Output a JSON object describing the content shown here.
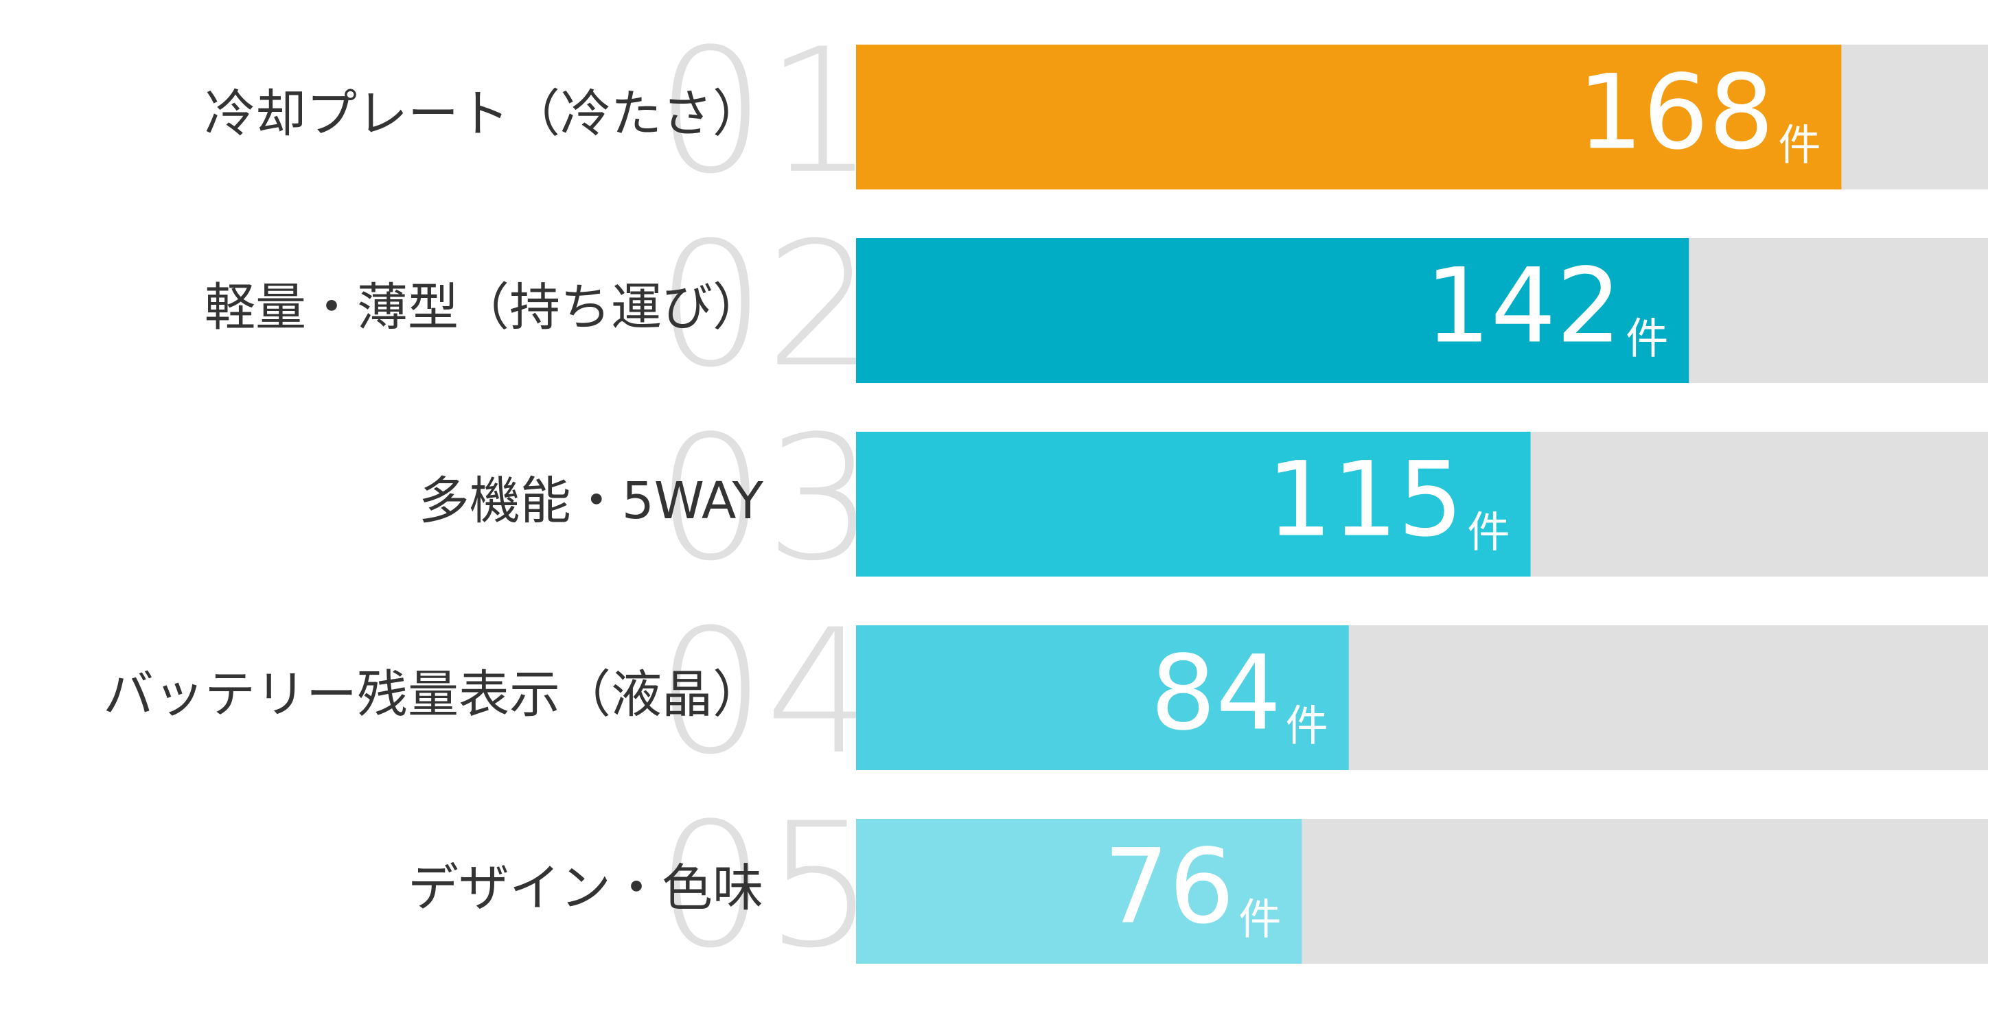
{
  "chart_data": {
    "type": "bar",
    "orientation": "horizontal",
    "categories": [
      "冷却プレート（冷たさ）",
      "軽量・薄型（持ち運び）",
      "多機能・5WAY",
      "バッテリー残量表示（液晶）",
      "デザイン・色味"
    ],
    "ranks": [
      "01",
      "02",
      "03",
      "04",
      "05"
    ],
    "values": [
      168,
      142,
      115,
      84,
      76
    ],
    "unit": "件",
    "colors": [
      "#f39c12",
      "#00adc4",
      "#26c6da",
      "#4dd0e1",
      "#80deea"
    ],
    "track_color": "#e0e0e0",
    "xlim": [
      0,
      193
    ]
  }
}
